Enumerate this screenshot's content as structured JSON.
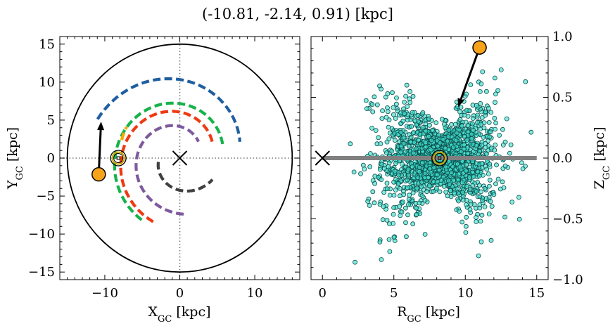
{
  "title": "(-10.81, -2.14, 0.91) [kpc]",
  "colors": {
    "spiral_blue": "#1f5fa0",
    "spiral_green": "#16b34a",
    "spiral_orange": "#f5a800",
    "spiral_red": "#ee3a12",
    "spiral_purple": "#7e5a9e",
    "spiral_dark": "#404040",
    "stars": "#40e0d0",
    "marker": "#f7a21b",
    "sun_ring": "#c8a400",
    "plane": "#808080"
  },
  "chart_data": [
    {
      "type": "line",
      "name": "galactic-plane-xy",
      "xlabel": "X",
      "xlabel_sub": "GC",
      "xlabel_unit": " [kpc]",
      "ylabel": "Y",
      "ylabel_sub": "GC",
      "ylabel_unit": " [kpc]",
      "xlim": [
        -16,
        16
      ],
      "ylim": [
        -16,
        16
      ],
      "xticks": [
        -10,
        0,
        10
      ],
      "xtick_labels": [
        "−10",
        "0",
        "10"
      ],
      "yticks": [
        -15,
        -10,
        -5,
        0,
        5,
        10,
        15
      ],
      "ytick_labels": [
        "−15",
        "−10",
        "−5",
        "0",
        "5",
        "10",
        "15"
      ],
      "boundary_radius_kpc": 15,
      "center_marker": [
        0,
        0
      ],
      "sun_position": [
        -8.2,
        0
      ],
      "object_position": [
        -10.81,
        -2.14
      ],
      "proper_motion_arrow_to": [
        -10.5,
        4.8
      ],
      "spiral_arms": [
        {
          "color_key": "spiral_blue",
          "start_angle_deg": 155,
          "end_angle_deg": 15,
          "radius_start": 12.1,
          "radius_end": 8.3
        },
        {
          "color_key": "spiral_green",
          "start_angle_deg": 238,
          "end_angle_deg": 18,
          "radius_start": 9.6,
          "radius_end": 6.0
        },
        {
          "color_key": "spiral_orange",
          "start_angle_deg": 163,
          "end_angle_deg": 150,
          "radius_start": 8.1,
          "radius_end": 8.2
        },
        {
          "color_key": "spiral_red",
          "start_angle_deg": 247,
          "end_angle_deg": 25,
          "radius_start": 9.1,
          "radius_end": 4.8
        },
        {
          "color_key": "spiral_purple",
          "start_angle_deg": 274,
          "end_angle_deg": 41,
          "radius_start": 7.4,
          "radius_end": 3.3
        },
        {
          "color_key": "spiral_dark",
          "start_angle_deg": 190,
          "end_angle_deg": 327,
          "radius_start": 2.9,
          "radius_end": 5.2
        }
      ]
    },
    {
      "type": "scatter",
      "name": "rz-projection",
      "xlabel": "R",
      "xlabel_sub": "GC",
      "xlabel_unit": " [kpc]",
      "ylabel": "Z",
      "ylabel_sub": "GC",
      "ylabel_unit": " [kpc]",
      "xlim": [
        -0.8,
        15.8
      ],
      "ylim": [
        -1.0,
        1.0
      ],
      "xticks": [
        0,
        5,
        10,
        15
      ],
      "xtick_labels": [
        "0",
        "5",
        "10",
        "15"
      ],
      "yticks": [
        -1.0,
        -0.5,
        0.0,
        0.5,
        1.0
      ],
      "ytick_labels": [
        "−1.0",
        "−0.5",
        "0.0",
        "0.5",
        "1.0"
      ],
      "yaxis_side": "right",
      "plane_z": 0.0,
      "plane_x_range": [
        0,
        15
      ],
      "center_marker": [
        0,
        0
      ],
      "sun_position": [
        8.2,
        0
      ],
      "object_position": [
        11.0,
        0.91
      ],
      "arrow_to": [
        9.5,
        0.42
      ],
      "cloud": {
        "count": 1800,
        "r_center": 8.2,
        "r_spread": 2.0,
        "z_spread_at_sun": 0.1,
        "z_flare_per_kpc": 0.028
      }
    }
  ]
}
